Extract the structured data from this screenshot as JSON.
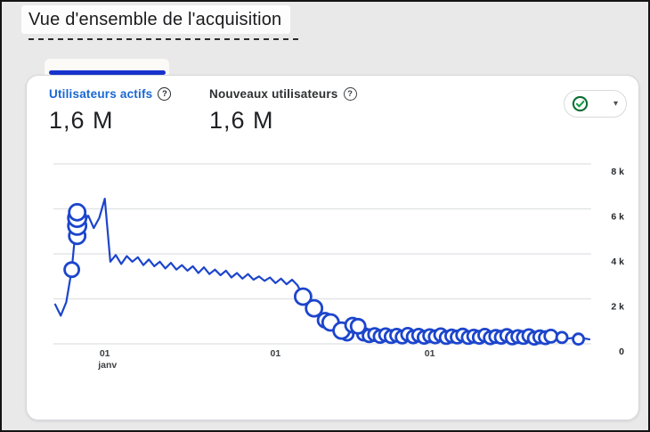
{
  "page": {
    "title": "Vue d'ensemble de l'acquisition"
  },
  "card": {
    "metrics": [
      {
        "label": "Utilisateurs actifs",
        "help_glyph": "?",
        "value": "1,6 M",
        "selected": true
      },
      {
        "label": "Nouveaux utilisateurs",
        "help_glyph": "?",
        "value": "1,6 M",
        "selected": false
      }
    ],
    "quality_dropdown": {
      "icon": "check-circle",
      "chevron": "▾"
    }
  },
  "colors": {
    "tab_indicator": "#1733cd",
    "label_blue": "#1967d2",
    "line_blue": "#1c45cc",
    "grid_gray": "#dfe1e3",
    "check_green": "#0f9d44",
    "check_ring": "#0b6e31"
  },
  "chart_data": {
    "type": "line",
    "metric": "Utilisateurs actifs",
    "unit": "utilisateurs par jour",
    "ylim": [
      0,
      8000
    ],
    "grid": true,
    "y_ticks": [
      {
        "v": 8000,
        "label": "8 k"
      },
      {
        "v": 6000,
        "label": "6 k"
      },
      {
        "v": 4000,
        "label": "4 k"
      },
      {
        "v": 2000,
        "label": "2 k"
      },
      {
        "v": 0,
        "label": "0"
      }
    ],
    "x_ticks": [
      {
        "day": 9,
        "label": "01",
        "sub": "janv"
      },
      {
        "day": 40,
        "label": "01"
      },
      {
        "day": 68,
        "label": "01"
      }
    ],
    "days": [
      1750,
      1250,
      1850,
      3300,
      5850,
      5350,
      5700,
      5150,
      5600,
      6450,
      3650,
      3950,
      3550,
      3900,
      3650,
      3850,
      3500,
      3750,
      3450,
      3650,
      3350,
      3600,
      3300,
      3500,
      3250,
      3450,
      3150,
      3400,
      3100,
      3300,
      3050,
      3250,
      2950,
      3150,
      2900,
      3100,
      2850,
      3000,
      2800,
      2950,
      2700,
      2900,
      2650,
      2850,
      2600,
      2100,
      1800,
      1580,
      1250,
      1050,
      950,
      700,
      590,
      430,
      830,
      780,
      430,
      360,
      410,
      330,
      400,
      320,
      380,
      300,
      420,
      310,
      380,
      290,
      360,
      310,
      400,
      280,
      350,
      300,
      390,
      280,
      340,
      290,
      380,
      270,
      330,
      290,
      370,
      260,
      320,
      280,
      360,
      250,
      310,
      270,
      340,
      250,
      280,
      230,
      260,
      210,
      240,
      200
    ],
    "markers": [
      {
        "d": 3,
        "v": 3300,
        "r": 8
      },
      {
        "d": 4,
        "v": 4800,
        "r": 9
      },
      {
        "d": 4,
        "v": 5250,
        "r": 10
      },
      {
        "d": 4,
        "v": 5600,
        "r": 10
      },
      {
        "d": 4,
        "v": 5850,
        "r": 9
      },
      {
        "d": 45,
        "v": 2100,
        "r": 9
      },
      {
        "d": 47,
        "v": 1580,
        "r": 9
      },
      {
        "d": 49,
        "v": 1050,
        "r": 8
      },
      {
        "d": 50,
        "v": 950,
        "r": 9
      },
      {
        "d": 52,
        "v": 590,
        "r": 9
      },
      {
        "d": 54,
        "v": 830,
        "r": 8
      },
      {
        "d": 55,
        "v": 780,
        "r": 8
      },
      {
        "d": 92,
        "r": 6
      },
      {
        "d": 95,
        "r": 6
      }
    ],
    "marker_band": {
      "from": 52,
      "to": 90,
      "r": 7
    }
  }
}
